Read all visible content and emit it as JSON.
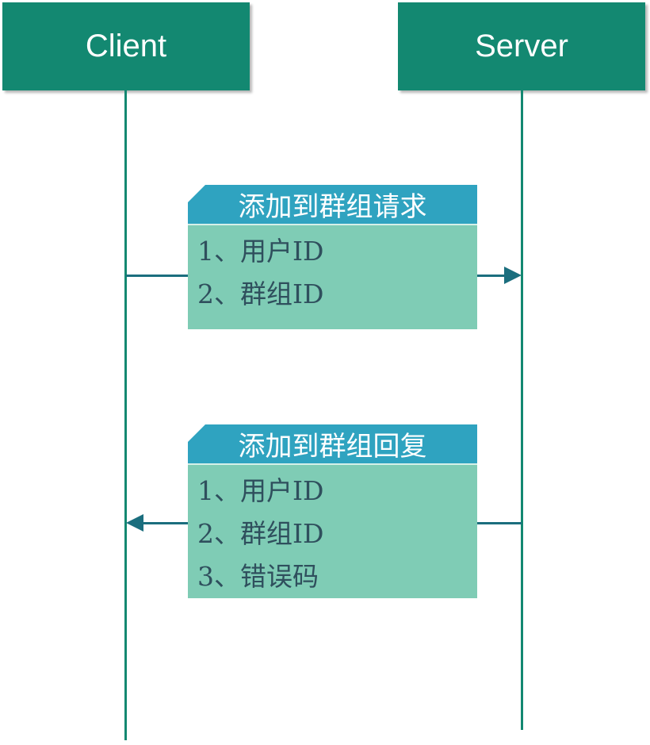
{
  "actors": {
    "client": "Client",
    "server": "Server"
  },
  "messages": {
    "request": {
      "title": "添加到群组请求",
      "direction": "client-to-server",
      "fields": [
        "1、用户ID",
        "2、群组ID"
      ]
    },
    "response": {
      "title": "添加到群组回复",
      "direction": "server-to-client",
      "fields": [
        "1、用户ID",
        "2、群组ID",
        "3、错误码"
      ]
    }
  },
  "colors": {
    "actor": "#138871",
    "lifeline": "#138871",
    "arrow": "#1b6e7e",
    "message_header": "#2fa3c0",
    "message_body": "#7fccb5",
    "field_text": "#2f4f5d"
  }
}
